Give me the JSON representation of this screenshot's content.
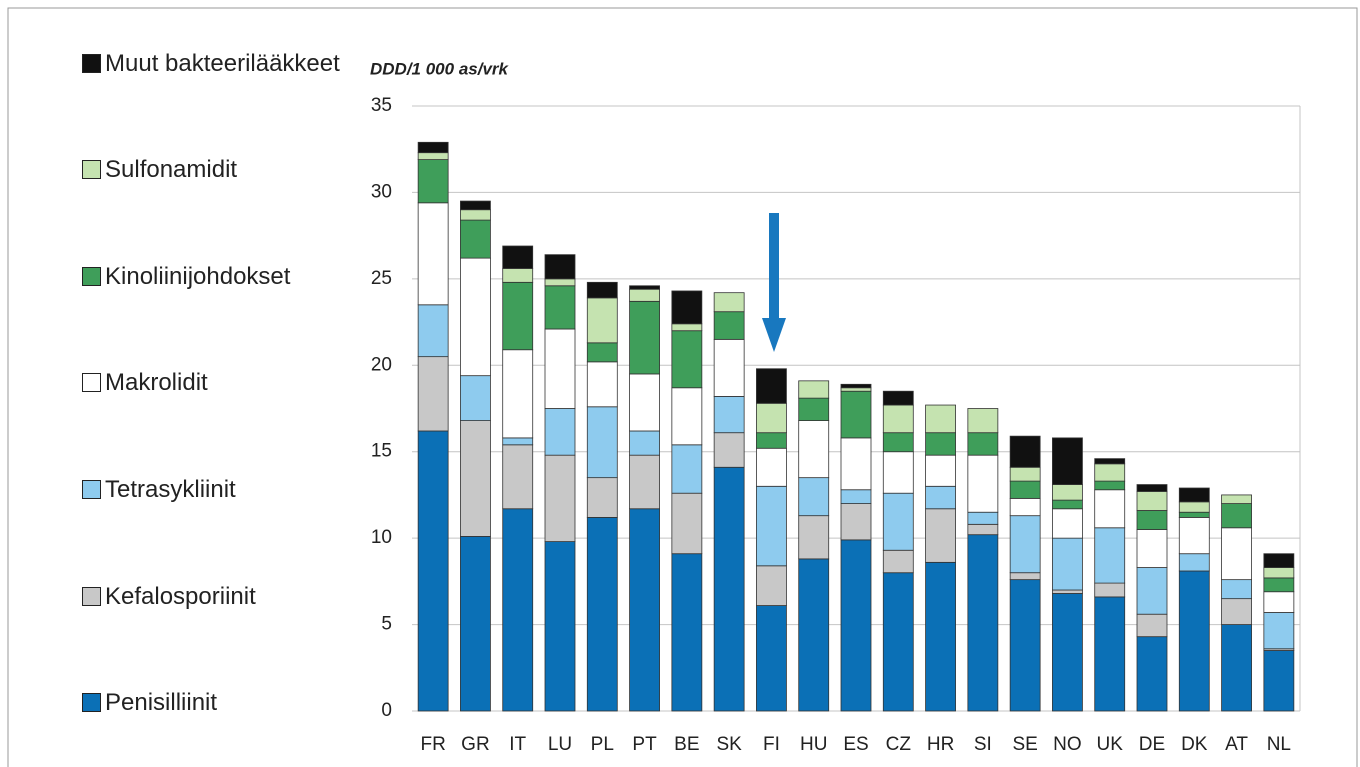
{
  "chart_data": {
    "type": "stacked_bar",
    "y_axis_label": "DDD/1 000 as/vrk",
    "categories": [
      "FR",
      "GR",
      "IT",
      "LU",
      "PL",
      "PT",
      "BE",
      "SK",
      "FI",
      "HU",
      "ES",
      "CZ",
      "HR",
      "SI",
      "SE",
      "NO",
      "UK",
      "DE",
      "DK",
      "AT",
      "NL"
    ],
    "series": [
      {
        "name": "Penisilliinit",
        "color": "#0b70b6",
        "values": [
          16.2,
          10.1,
          11.7,
          9.8,
          11.2,
          11.7,
          9.1,
          14.1,
          6.1,
          8.8,
          9.9,
          8.0,
          8.6,
          10.2,
          7.6,
          6.8,
          6.6,
          4.3,
          8.1,
          5.0,
          3.5
        ]
      },
      {
        "name": "Kefalosporiinit",
        "color": "#c8c8c8",
        "values": [
          4.3,
          6.7,
          3.7,
          5.0,
          2.3,
          3.1,
          3.5,
          2.0,
          2.3,
          2.5,
          2.1,
          1.3,
          3.1,
          0.6,
          0.4,
          0.2,
          0.8,
          1.3,
          0,
          1.5,
          0.1
        ]
      },
      {
        "name": "Tetrasykliinit",
        "color": "#8ecbee",
        "values": [
          3.0,
          2.6,
          0.4,
          2.7,
          4.1,
          1.4,
          2.8,
          2.1,
          4.6,
          2.2,
          0.8,
          3.3,
          1.3,
          0.7,
          3.3,
          3.0,
          3.2,
          2.7,
          1.0,
          1.1,
          2.1
        ]
      },
      {
        "name": "Makrolidit",
        "color": "#ffffff",
        "values": [
          5.9,
          6.8,
          5.1,
          4.6,
          2.6,
          3.3,
          3.3,
          3.3,
          2.2,
          3.3,
          3.0,
          2.4,
          1.8,
          3.3,
          1.0,
          1.7,
          2.2,
          2.2,
          2.1,
          3.0,
          1.2
        ]
      },
      {
        "name": "Kinoliinijohdokset",
        "color": "#3f9e5a",
        "values": [
          2.5,
          2.2,
          3.9,
          2.5,
          1.1,
          4.2,
          3.3,
          1.6,
          0.9,
          1.3,
          2.7,
          1.1,
          1.3,
          1.3,
          1.0,
          0.5,
          0.5,
          1.1,
          0.3,
          1.4,
          0.8
        ]
      },
      {
        "name": "Sulfonamidit",
        "color": "#c5e3b0",
        "values": [
          0.4,
          0.6,
          0.8,
          0.4,
          2.6,
          0.7,
          0.4,
          1.1,
          1.7,
          1.0,
          0.2,
          1.6,
          1.6,
          1.4,
          0.8,
          0.9,
          1.0,
          1.1,
          0.6,
          0.5,
          0.6
        ]
      },
      {
        "name": "Muut bakteerilääkkeet",
        "color": "#111111",
        "values": [
          0.6,
          0.5,
          1.3,
          1.4,
          0.9,
          0.2,
          1.9,
          0,
          2.0,
          0,
          0.2,
          0.8,
          0,
          0,
          1.8,
          2.7,
          0.3,
          0.4,
          0.8,
          0,
          0.8
        ]
      }
    ],
    "ylim": [
      0,
      35
    ],
    "yticks": [
      0,
      5,
      10,
      15,
      20,
      25,
      30,
      35
    ],
    "grid": true
  }
}
